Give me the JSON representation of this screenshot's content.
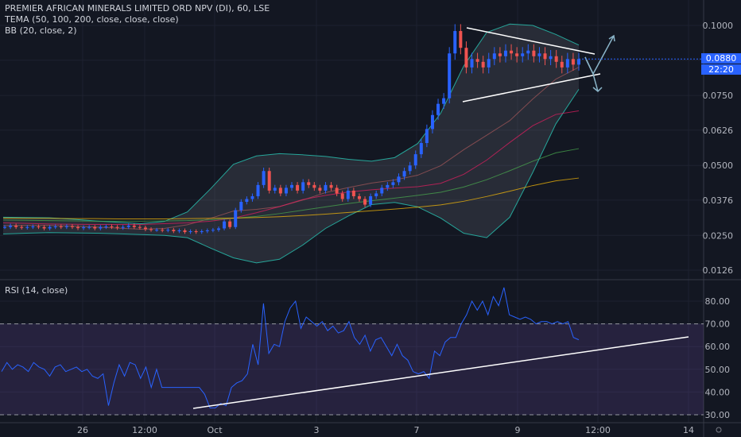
{
  "legend": {
    "symbol_line": "PREMIER AFRICAN MINERALS LIMITED ORD NPV (DI), 60, LSE",
    "tema_line": "TEMA (50, 100, 200, close, close, close)",
    "bb_line": "BB (20, close, 2)",
    "rsi_line": "RSI (14, close)"
  },
  "price_badge": {
    "price": "0.0880",
    "countdown": "22:20",
    "color": "#2962ff"
  },
  "colors": {
    "background": "#131722",
    "up_candle": "#2962ff",
    "down_candle": "#ef5350",
    "bb_band": "#26a69a",
    "tema_fast": "#e91e63",
    "tema_mid": "#4caf50",
    "tema_slow": "#ffc107",
    "rsi_line": "#2962ff",
    "rsi_zone": "#7e57c2"
  },
  "chart_data": [
    {
      "type": "candlestick",
      "title": "PREMIER AFRICAN MINERALS LIMITED ORD NPV (DI), 60, LSE",
      "y_ticks": [
        "0.1000",
        "0.0876",
        "0.0750",
        "0.0626",
        "0.0500",
        "0.0376",
        "0.0250",
        "0.0126"
      ],
      "y_range": [
        0.009,
        0.106
      ],
      "x_ticks": [
        "26",
        "12:00",
        "Oct",
        "3",
        "7",
        "9",
        "12:00",
        "14"
      ],
      "last_price": 0.088,
      "close_series": [
        0.028,
        0.0285,
        0.028,
        0.0278,
        0.028,
        0.0282,
        0.028,
        0.0275,
        0.028,
        0.0282,
        0.028,
        0.0283,
        0.028,
        0.0276,
        0.0279,
        0.028,
        0.0275,
        0.028,
        0.0282,
        0.028,
        0.0277,
        0.028,
        0.0285,
        0.028,
        0.0278,
        0.0272,
        0.027,
        0.027,
        0.0268,
        0.027,
        0.0265,
        0.0268,
        0.0262,
        0.0265,
        0.0262,
        0.0265,
        0.0268,
        0.027,
        0.0275,
        0.03,
        0.028,
        0.034,
        0.037,
        0.038,
        0.039,
        0.043,
        0.048,
        0.041,
        0.042,
        0.04,
        0.042,
        0.043,
        0.041,
        0.044,
        0.043,
        0.042,
        0.041,
        0.043,
        0.042,
        0.04,
        0.038,
        0.041,
        0.039,
        0.038,
        0.036,
        0.039,
        0.04,
        0.042,
        0.043,
        0.044,
        0.046,
        0.048,
        0.05,
        0.054,
        0.058,
        0.063,
        0.068,
        0.072,
        0.074,
        0.09,
        0.098,
        0.092,
        0.085,
        0.088,
        0.087,
        0.085,
        0.088,
        0.09,
        0.089,
        0.091,
        0.09,
        0.089,
        0.09,
        0.091,
        0.089,
        0.09,
        0.088,
        0.089,
        0.087,
        0.085,
        0.088,
        0.086,
        0.088
      ],
      "tema_50": [
        0.0295,
        0.0293,
        0.0291,
        0.029,
        0.0289,
        0.0289,
        0.0289,
        0.0292,
        0.0295,
        0.0301,
        0.0312,
        0.0331,
        0.0353,
        0.0378,
        0.0393,
        0.0405,
        0.0413,
        0.0419,
        0.0424,
        0.0436,
        0.0468,
        0.0519,
        0.0582,
        0.0642,
        0.0682,
        0.0695
      ],
      "tema_100": [
        0.0305,
        0.0304,
        0.0303,
        0.0302,
        0.0301,
        0.0301,
        0.0301,
        0.0302,
        0.0303,
        0.0306,
        0.0311,
        0.0318,
        0.0328,
        0.034,
        0.0352,
        0.0364,
        0.0374,
        0.0383,
        0.0393,
        0.0404,
        0.0423,
        0.0449,
        0.0481,
        0.0515,
        0.0545,
        0.056
      ],
      "tema_200": [
        0.0312,
        0.0311,
        0.0311,
        0.031,
        0.031,
        0.0309,
        0.0309,
        0.0309,
        0.031,
        0.0311,
        0.0312,
        0.0314,
        0.0317,
        0.0321,
        0.0326,
        0.0332,
        0.0338,
        0.0344,
        0.0351,
        0.0359,
        0.0372,
        0.0389,
        0.0408,
        0.0428,
        0.0445,
        0.0455
      ],
      "bb_upper": [
        0.0315,
        0.0314,
        0.0313,
        0.0308,
        0.0302,
        0.0297,
        0.0292,
        0.03,
        0.0334,
        0.0416,
        0.0504,
        0.0534,
        0.0542,
        0.0538,
        0.0532,
        0.0522,
        0.0515,
        0.0528,
        0.0578,
        0.0686,
        0.0855,
        0.0975,
        0.1005,
        0.1,
        0.0968,
        0.093
      ],
      "bb_lower": [
        0.0255,
        0.0258,
        0.026,
        0.0259,
        0.0258,
        0.0256,
        0.0253,
        0.025,
        0.0242,
        0.0205,
        0.017,
        0.0152,
        0.0165,
        0.0215,
        0.0275,
        0.032,
        0.036,
        0.0368,
        0.0352,
        0.0312,
        0.0258,
        0.0242,
        0.0315,
        0.0475,
        0.0648,
        0.0772
      ],
      "bb_basis": [
        0.0285,
        0.0286,
        0.0286,
        0.0283,
        0.028,
        0.0276,
        0.0272,
        0.0275,
        0.0288,
        0.0311,
        0.0337,
        0.0343,
        0.0353,
        0.0376,
        0.0403,
        0.0421,
        0.0437,
        0.0448,
        0.0465,
        0.0499,
        0.0556,
        0.0608,
        0.066,
        0.0737,
        0.0808,
        0.0851
      ],
      "annotations": [
        "symmetrical triangle",
        "rising support line"
      ]
    },
    {
      "type": "line",
      "title": "RSI (14, close)",
      "y_ticks": [
        "80.00",
        "70.00",
        "60.00",
        "50.00",
        "40.00",
        "30.00"
      ],
      "y_range": [
        27,
        88
      ],
      "band": [
        30,
        70
      ],
      "values": [
        49,
        53,
        50,
        52,
        51,
        49,
        53,
        51,
        50,
        47,
        51,
        52,
        49,
        50,
        51,
        49,
        50,
        47,
        46,
        48,
        34,
        44,
        52,
        47,
        53,
        52,
        46,
        51,
        42,
        50,
        42,
        42,
        42,
        42,
        42,
        42,
        42,
        42,
        39,
        33,
        33,
        35,
        34,
        42,
        44,
        45,
        48,
        61,
        52,
        79,
        57,
        61,
        60,
        71,
        77,
        80,
        68,
        73,
        71,
        69,
        71,
        67,
        69,
        66,
        67,
        71,
        64,
        61,
        65,
        58,
        63,
        64,
        60,
        56,
        61,
        56,
        54,
        49,
        48,
        49,
        46,
        58,
        56,
        62,
        64,
        64,
        70,
        74,
        80,
        76,
        80,
        74,
        82,
        78,
        86,
        74,
        73,
        72,
        73,
        72,
        70,
        71,
        71,
        70,
        71,
        70,
        71,
        64,
        63
      ]
    }
  ]
}
